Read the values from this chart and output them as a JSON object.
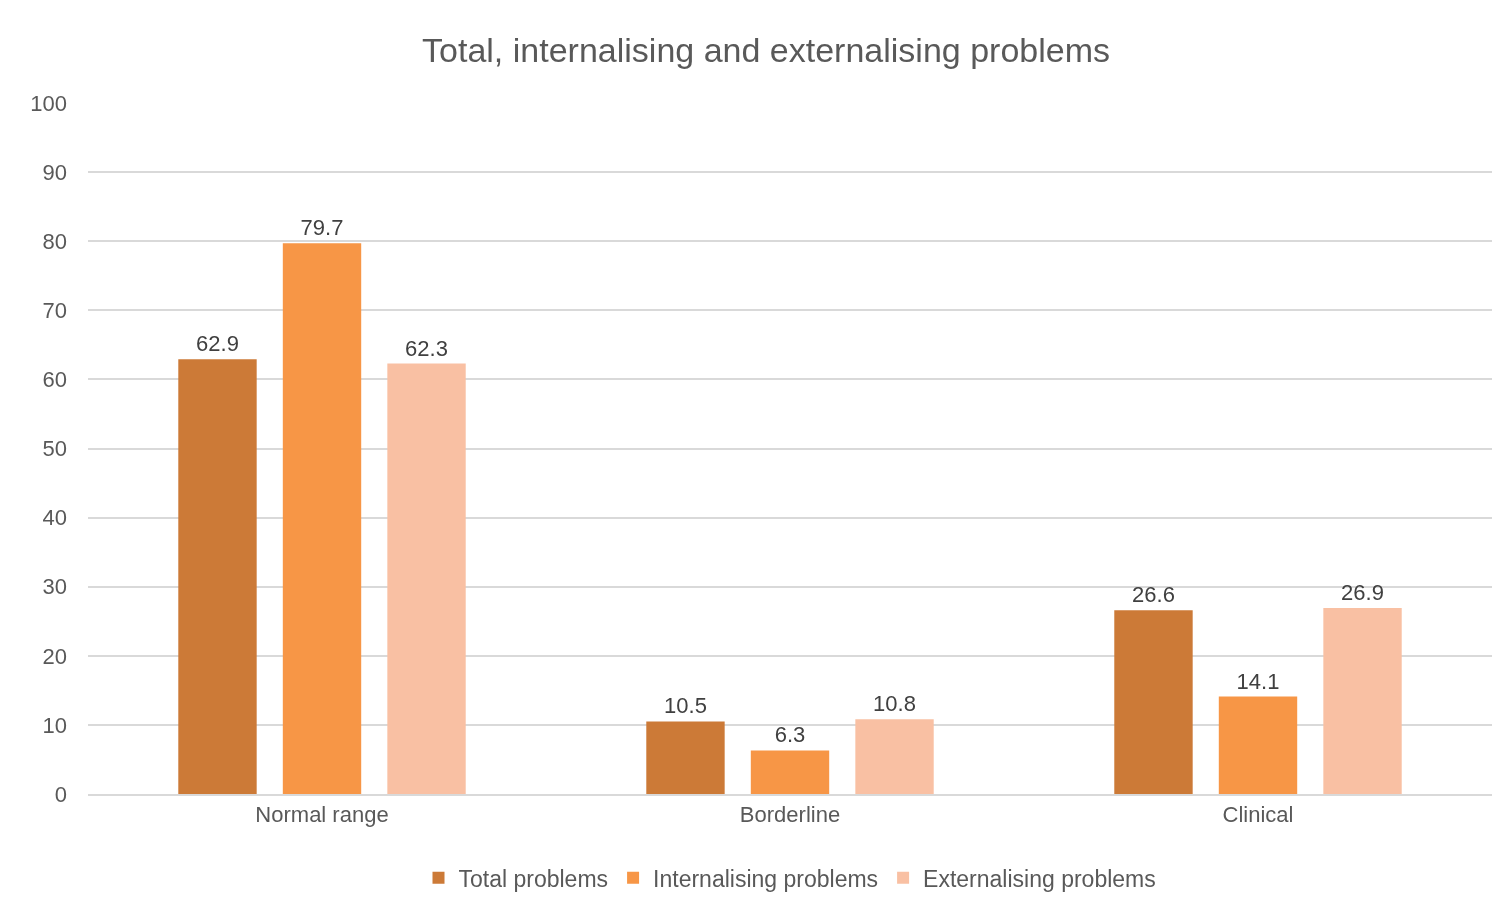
{
  "chart_data": {
    "type": "bar",
    "title": "Total, internalising and externalising problems",
    "categories": [
      "Normal range",
      "Borderline",
      "Clinical"
    ],
    "series": [
      {
        "name": "Total problems",
        "color": "#cc7a37",
        "values": [
          62.9,
          10.5,
          26.6
        ]
      },
      {
        "name": "Internalising problems",
        "color": "#f79646",
        "values": [
          79.7,
          6.3,
          14.1
        ]
      },
      {
        "name": "Externalising problems",
        "color": "#f9c0a3",
        "values": [
          62.3,
          10.8,
          26.9
        ]
      }
    ],
    "ylim": [
      0,
      100
    ],
    "yticks": [
      0,
      10,
      20,
      30,
      40,
      50,
      60,
      70,
      80,
      90,
      100
    ],
    "grid": "y",
    "legend": "bottom",
    "data_labels": true
  }
}
